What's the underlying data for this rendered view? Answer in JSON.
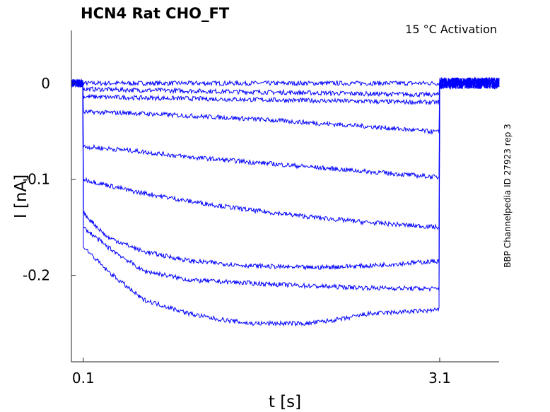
{
  "chart_data": {
    "type": "line",
    "title": "HCN4  Rat  CHO_FT",
    "annotation": "15 °C  Activation",
    "side_label": "BBP Channelpedia ID 27923 rep 3",
    "xlabel": "t [s]",
    "ylabel": "I [nA]",
    "xlim": [
      0.0,
      3.6
    ],
    "ylim": [
      -0.29,
      0.055
    ],
    "x_ticks": [
      0.1,
      3.1
    ],
    "x_tick_labels": [
      "0.1",
      "3.1"
    ],
    "y_ticks": [
      0,
      -0.1,
      -0.2
    ],
    "y_tick_labels": [
      "0",
      "-0.1",
      "-0.2"
    ],
    "grid": false,
    "line_color": "#0000ff",
    "series": [
      {
        "x": [
          0.1,
          0.5,
          1.0,
          1.5,
          2.0,
          2.5,
          3.1
        ],
        "y": [
          0.0,
          0.0,
          0.0,
          0.0,
          0.0,
          0.0,
          0.0
        ]
      },
      {
        "x": [
          0.1,
          0.5,
          1.0,
          1.5,
          2.0,
          2.5,
          3.1
        ],
        "y": [
          -0.006,
          -0.007,
          -0.008,
          -0.009,
          -0.01,
          -0.011,
          -0.012
        ]
      },
      {
        "x": [
          0.1,
          0.5,
          1.0,
          1.5,
          2.0,
          2.5,
          3.1
        ],
        "y": [
          -0.014,
          -0.015,
          -0.016,
          -0.017,
          -0.018,
          -0.019,
          -0.02
        ]
      },
      {
        "x": [
          0.1,
          0.5,
          1.0,
          1.5,
          2.0,
          2.5,
          3.1
        ],
        "y": [
          -0.03,
          -0.031,
          -0.034,
          -0.037,
          -0.041,
          -0.045,
          -0.051
        ]
      },
      {
        "x": [
          0.1,
          0.5,
          1.0,
          1.5,
          2.0,
          2.5,
          3.1
        ],
        "y": [
          -0.066,
          -0.07,
          -0.077,
          -0.082,
          -0.087,
          -0.092,
          -0.098
        ]
      },
      {
        "x": [
          0.1,
          0.5,
          1.0,
          1.5,
          2.0,
          2.5,
          3.1
        ],
        "y": [
          -0.1,
          -0.112,
          -0.123,
          -0.132,
          -0.139,
          -0.145,
          -0.15
        ]
      },
      {
        "x": [
          0.1,
          0.3,
          0.6,
          1.0,
          1.5,
          2.0,
          2.5,
          3.1
        ],
        "y": [
          -0.135,
          -0.16,
          -0.175,
          -0.185,
          -0.19,
          -0.192,
          -0.19,
          -0.185
        ]
      },
      {
        "x": [
          0.1,
          0.3,
          0.6,
          1.0,
          1.5,
          2.0,
          2.5,
          3.1
        ],
        "y": [
          -0.15,
          -0.17,
          -0.195,
          -0.205,
          -0.208,
          -0.211,
          -0.213,
          -0.214
        ]
      },
      {
        "x": [
          0.1,
          0.3,
          0.6,
          1.0,
          1.2,
          1.5,
          2.0,
          2.3,
          2.5,
          3.1
        ],
        "y": [
          -0.17,
          -0.195,
          -0.225,
          -0.24,
          -0.245,
          -0.25,
          -0.25,
          -0.245,
          -0.24,
          -0.236
        ]
      }
    ]
  }
}
